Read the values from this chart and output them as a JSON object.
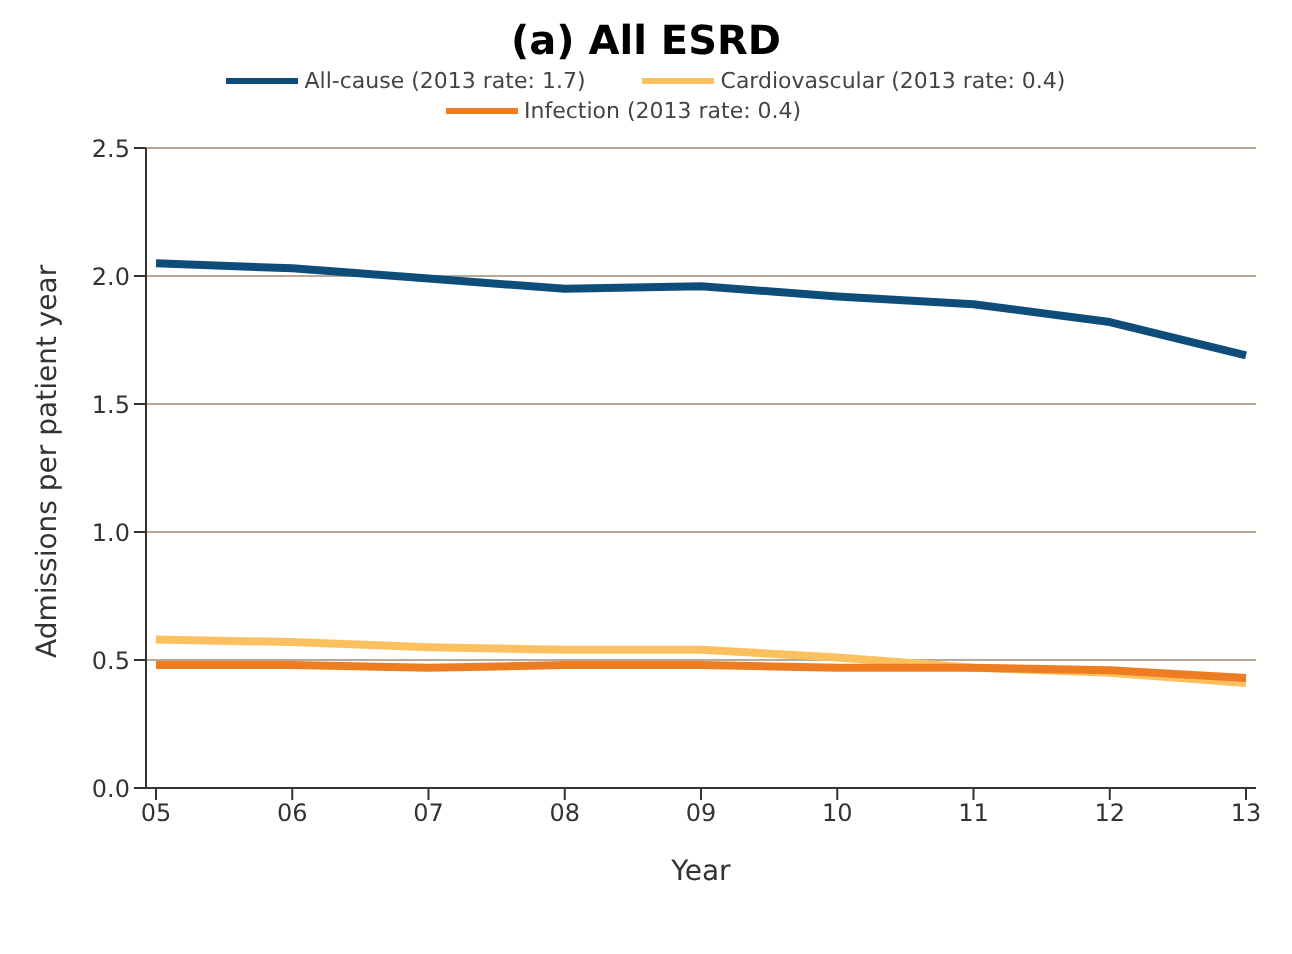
{
  "chart_data": {
    "type": "line",
    "title": "(a) All ESRD",
    "xlabel": "Year",
    "ylabel": "Admissions per patient year",
    "categories": [
      "05",
      "06",
      "07",
      "08",
      "09",
      "10",
      "11",
      "12",
      "13"
    ],
    "series": [
      {
        "name": "All-cause (2013 rate: 1.7)",
        "color": "#0e4d7a",
        "values": [
          2.05,
          2.03,
          1.99,
          1.95,
          1.96,
          1.92,
          1.89,
          1.82,
          1.69
        ]
      },
      {
        "name": "Cardiovascular (2013 rate: 0.4)",
        "color": "#fdc05e",
        "values": [
          0.58,
          0.57,
          0.55,
          0.54,
          0.54,
          0.51,
          0.47,
          0.45,
          0.41
        ]
      },
      {
        "name": "Infection (2013 rate: 0.4)",
        "color": "#ee7d22",
        "values": [
          0.48,
          0.48,
          0.47,
          0.48,
          0.48,
          0.47,
          0.47,
          0.46,
          0.43
        ]
      }
    ],
    "ylim": [
      0,
      2.5
    ],
    "yticks": [
      {
        "value": 0,
        "label": "0.0"
      },
      0.5,
      {
        "value": 1,
        "label": "1.0"
      },
      1.5,
      {
        "value": 2,
        "label": "2.0"
      },
      2.5
    ],
    "grid": "y",
    "legend": "top",
    "marker": "none",
    "line_style": "solid"
  }
}
